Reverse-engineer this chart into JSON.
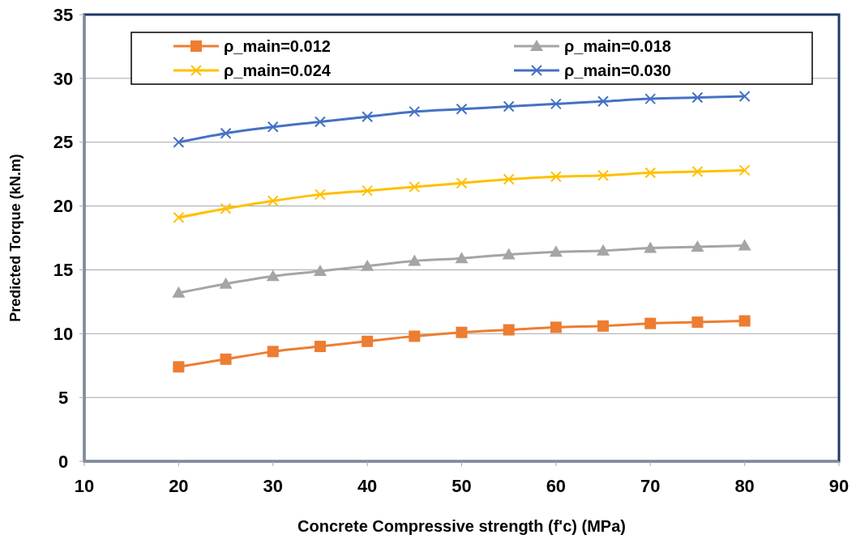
{
  "chart_data": {
    "type": "line",
    "xlabel": "Concrete Compressive strength (f'c) (MPa)",
    "ylabel": "Predicted Torque (kN.m)",
    "x": [
      20,
      25,
      30,
      35,
      40,
      45,
      50,
      55,
      60,
      65,
      70,
      75,
      80
    ],
    "series": [
      {
        "name": "ρ_main=0.012",
        "color": "#ed7d31",
        "marker": "square",
        "values": [
          7.4,
          8.0,
          8.6,
          9.0,
          9.4,
          9.8,
          10.1,
          10.3,
          10.5,
          10.6,
          10.8,
          10.9,
          11.0
        ]
      },
      {
        "name": "ρ_main=0.018",
        "color": "#a5a5a5",
        "marker": "triangle",
        "values": [
          13.2,
          13.9,
          14.5,
          14.9,
          15.3,
          15.7,
          15.9,
          16.2,
          16.4,
          16.5,
          16.7,
          16.8,
          16.9
        ]
      },
      {
        "name": "ρ_main=0.024",
        "color": "#ffc000",
        "marker": "cross",
        "values": [
          19.1,
          19.8,
          20.4,
          20.9,
          21.2,
          21.5,
          21.8,
          22.1,
          22.3,
          22.4,
          22.6,
          22.7,
          22.8
        ]
      },
      {
        "name": "ρ_main=0.030",
        "color": "#4472c4",
        "marker": "cross",
        "values": [
          25.0,
          25.7,
          26.2,
          26.6,
          27.0,
          27.4,
          27.6,
          27.8,
          28.0,
          28.2,
          28.4,
          28.5,
          28.6
        ]
      }
    ],
    "xlim": [
      10,
      90
    ],
    "xticks": [
      10,
      20,
      30,
      40,
      50,
      60,
      70,
      80,
      90
    ],
    "ylim": [
      0,
      35
    ],
    "yticks": [
      0,
      5,
      10,
      15,
      20,
      25,
      30,
      35
    ],
    "grid": "y",
    "legend": "top",
    "line_style": "solid"
  }
}
